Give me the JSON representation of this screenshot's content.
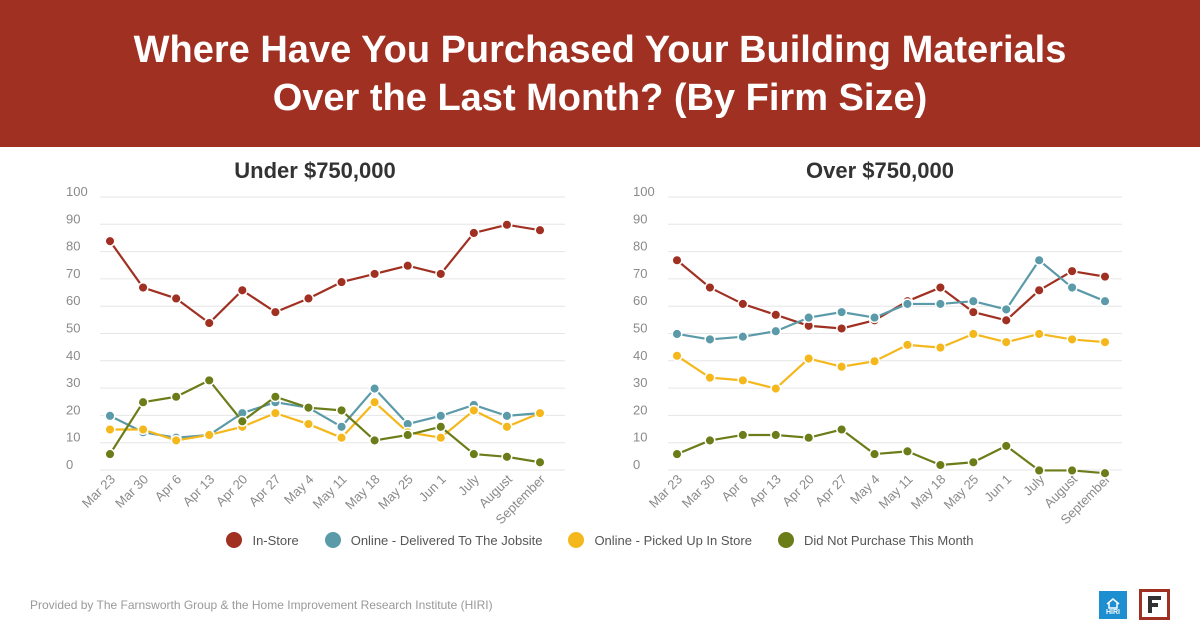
{
  "header": {
    "title_line1": "Where Have You Purchased Your Building Materials",
    "title_line2": "Over the Last Month? (By Firm Size)"
  },
  "colors": {
    "banner": "#a03022",
    "in_store": "#a03022",
    "delivered": "#5b9aa9",
    "picked_up": "#f4b81c",
    "did_not_purchase": "#6b7d19"
  },
  "chart_data": [
    {
      "type": "line",
      "title": "Under $750,000",
      "categories": [
        "Mar 23",
        "Mar 30",
        "Apr 6",
        "Apr 13",
        "Apr 20",
        "Apr 27",
        "May 4",
        "May 11",
        "May 18",
        "May 25",
        "Jun 1",
        "July",
        "August",
        "September"
      ],
      "yticks": [
        "0",
        "10",
        "20",
        "30",
        "40",
        "50",
        "60",
        "70",
        "80",
        "90",
        "100"
      ],
      "ylim": [
        0,
        100
      ],
      "grid": true,
      "series": [
        {
          "name": "In-Store",
          "values": [
            82,
            65,
            61,
            52,
            64,
            56,
            61,
            67,
            70,
            73,
            70,
            85,
            88,
            86
          ]
        },
        {
          "name": "Online - Delivered To The Jobsite",
          "values": [
            18,
            12,
            10,
            11,
            19,
            23,
            21,
            14,
            28,
            15,
            18,
            22,
            18,
            19
          ]
        },
        {
          "name": "Online - Picked Up In Store",
          "values": [
            13,
            13,
            9,
            11,
            14,
            19,
            15,
            10,
            23,
            12,
            10,
            20,
            14,
            19
          ]
        },
        {
          "name": "Did Not Purchase This Month",
          "values": [
            4,
            23,
            25,
            31,
            16,
            25,
            21,
            20,
            9,
            11,
            14,
            4,
            3,
            1
          ]
        }
      ]
    },
    {
      "type": "line",
      "title": "Over $750,000",
      "categories": [
        "Mar 23",
        "Mar 30",
        "Apr 6",
        "Apr 13",
        "Apr 20",
        "Apr 27",
        "May 4",
        "May 11",
        "May 18",
        "May 25",
        "Jun 1",
        "July",
        "August",
        "September"
      ],
      "yticks": [
        "0",
        "10",
        "20",
        "30",
        "40",
        "50",
        "60",
        "70",
        "80",
        "90",
        "100"
      ],
      "ylim": [
        0,
        100
      ],
      "grid": true,
      "series": [
        {
          "name": "In-Store",
          "values": [
            75,
            65,
            59,
            55,
            51,
            50,
            53,
            60,
            65,
            56,
            53,
            64,
            71,
            69
          ]
        },
        {
          "name": "Online - Delivered To The Jobsite",
          "values": [
            48,
            46,
            47,
            49,
            54,
            56,
            54,
            59,
            59,
            60,
            57,
            75,
            65,
            60
          ]
        },
        {
          "name": "Online - Picked Up In Store",
          "values": [
            40,
            32,
            31,
            28,
            39,
            36,
            38,
            44,
            43,
            48,
            45,
            48,
            46,
            45
          ]
        },
        {
          "name": "Did Not Purchase This Month",
          "values": [
            4,
            9,
            11,
            11,
            10,
            13,
            4,
            5,
            0,
            1,
            7,
            -2,
            -2,
            -3
          ]
        }
      ]
    }
  ],
  "legend": {
    "items": [
      {
        "label": "In-Store",
        "color": "#a03022"
      },
      {
        "label": "Online - Delivered To The Jobsite",
        "color": "#5b9aa9"
      },
      {
        "label": "Online - Picked Up In Store",
        "color": "#f4b81c"
      },
      {
        "label": "Did Not Purchase This Month",
        "color": "#6b7d19"
      }
    ]
  },
  "footer": {
    "credit": "Provided by The Farnsworth Group & the Home Improvement Research Institute (HIRI)",
    "hiri_logo_text": "HIRI"
  }
}
